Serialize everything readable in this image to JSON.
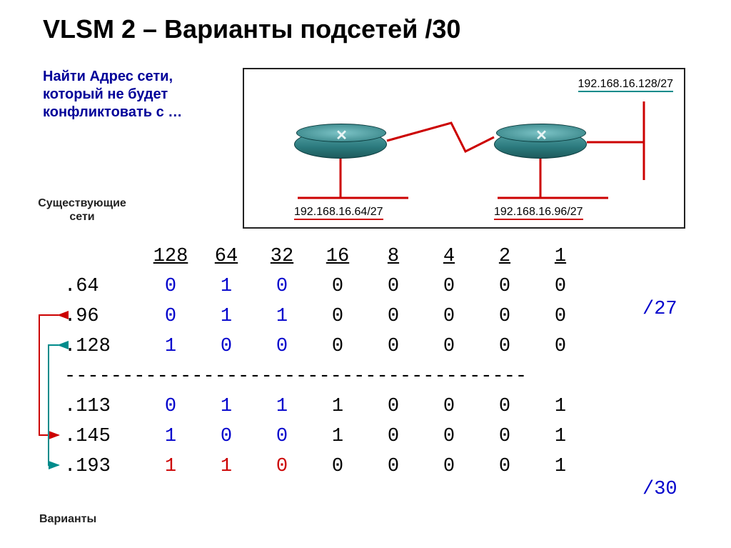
{
  "title": "VLSM 2 – Варианты подсетей /30",
  "subtitle": "Найти Адрес сети, который не будет конфликтовать с …",
  "side_label_top": "Существующие сети",
  "side_label_bottom": "Варианты",
  "diagram": {
    "label_top_right": "192.168.16.128/27",
    "label_bottom_left": "192.168.16.64/27",
    "label_bottom_right": "192.168.16.96/27",
    "colors": {
      "link_red": "#cc0000",
      "router_fill": "#3d8a8d",
      "border": "#222222"
    }
  },
  "binary_table": {
    "headers": [
      "128",
      "64",
      "32",
      "16",
      "8",
      "4",
      "2",
      "1"
    ],
    "rows_top": [
      {
        "label": ".64",
        "bits": [
          "0",
          "1",
          "0",
          "0",
          "0",
          "0",
          "0",
          "0"
        ],
        "colored_count": 3
      },
      {
        "label": ".96",
        "bits": [
          "0",
          "1",
          "1",
          "0",
          "0",
          "0",
          "0",
          "0"
        ],
        "colored_count": 3
      },
      {
        "label": ".128",
        "bits": [
          "1",
          "0",
          "0",
          "0",
          "0",
          "0",
          "0",
          "0"
        ],
        "colored_count": 3
      }
    ],
    "rows_bottom": [
      {
        "label": ".113",
        "bits": [
          "0",
          "1",
          "1",
          "1",
          "0",
          "0",
          "0",
          "1"
        ],
        "colored_count": 3
      },
      {
        "label": ".145",
        "bits": [
          "1",
          "0",
          "0",
          "1",
          "0",
          "0",
          "0",
          "1"
        ],
        "colored_count": 3
      },
      {
        "label": ".193",
        "bits": [
          "1",
          "1",
          "0",
          "0",
          "0",
          "0",
          "0",
          "1"
        ],
        "colored_count": 3,
        "red": true
      }
    ],
    "divider": "----------------------------------------"
  },
  "annotations": {
    "right_top": "/27",
    "right_bottom": "/30"
  },
  "arrow_colors": {
    "red": "#cc0000",
    "teal": "#008b8b"
  }
}
